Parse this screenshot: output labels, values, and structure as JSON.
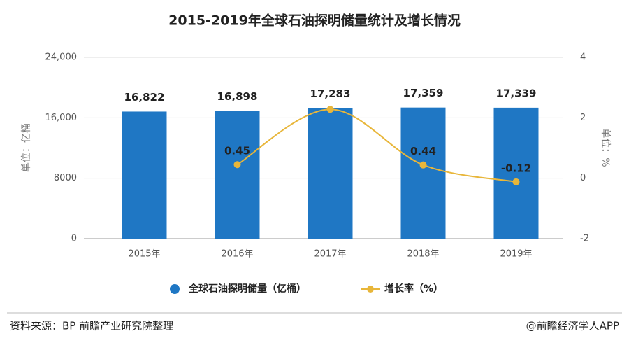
{
  "chart_data": {
    "type": "bar_line",
    "title": "2015-2019年全球石油探明储量统计及增长情况",
    "categories": [
      "2015年",
      "2016年",
      "2017年",
      "2018年",
      "2019年"
    ],
    "series": [
      {
        "name": "全球石油探明储量（亿桶）",
        "type": "bar",
        "color": "#1f77c4",
        "values": [
          16822,
          16898,
          17283,
          17359,
          17339
        ],
        "value_labels": [
          "16,822",
          "16,898",
          "17,283",
          "17,359",
          "17,339"
        ]
      },
      {
        "name": "增长率（%）",
        "type": "line",
        "axis": "y2",
        "color": "#e8b63a",
        "values": [
          null,
          0.45,
          2.28,
          0.44,
          -0.12
        ],
        "value_labels": [
          null,
          "0.45",
          null,
          "0.44",
          "-0.12"
        ]
      }
    ],
    "ylabel": "单位：亿桶",
    "y2label": "单位：%",
    "ylim": [
      0,
      24000
    ],
    "yticks": [
      0,
      8000,
      {
        "value": 16000,
        "label": "16,000"
      },
      {
        "value": 24000,
        "label": "24,000"
      }
    ],
    "y2lim": [
      -2,
      4
    ],
    "y2ticks": [
      -2,
      0,
      2,
      4
    ],
    "grid": true,
    "source": "资料来源：BP 前瞻产业研究院整理",
    "credit": "@前瞻经济学人APP"
  }
}
